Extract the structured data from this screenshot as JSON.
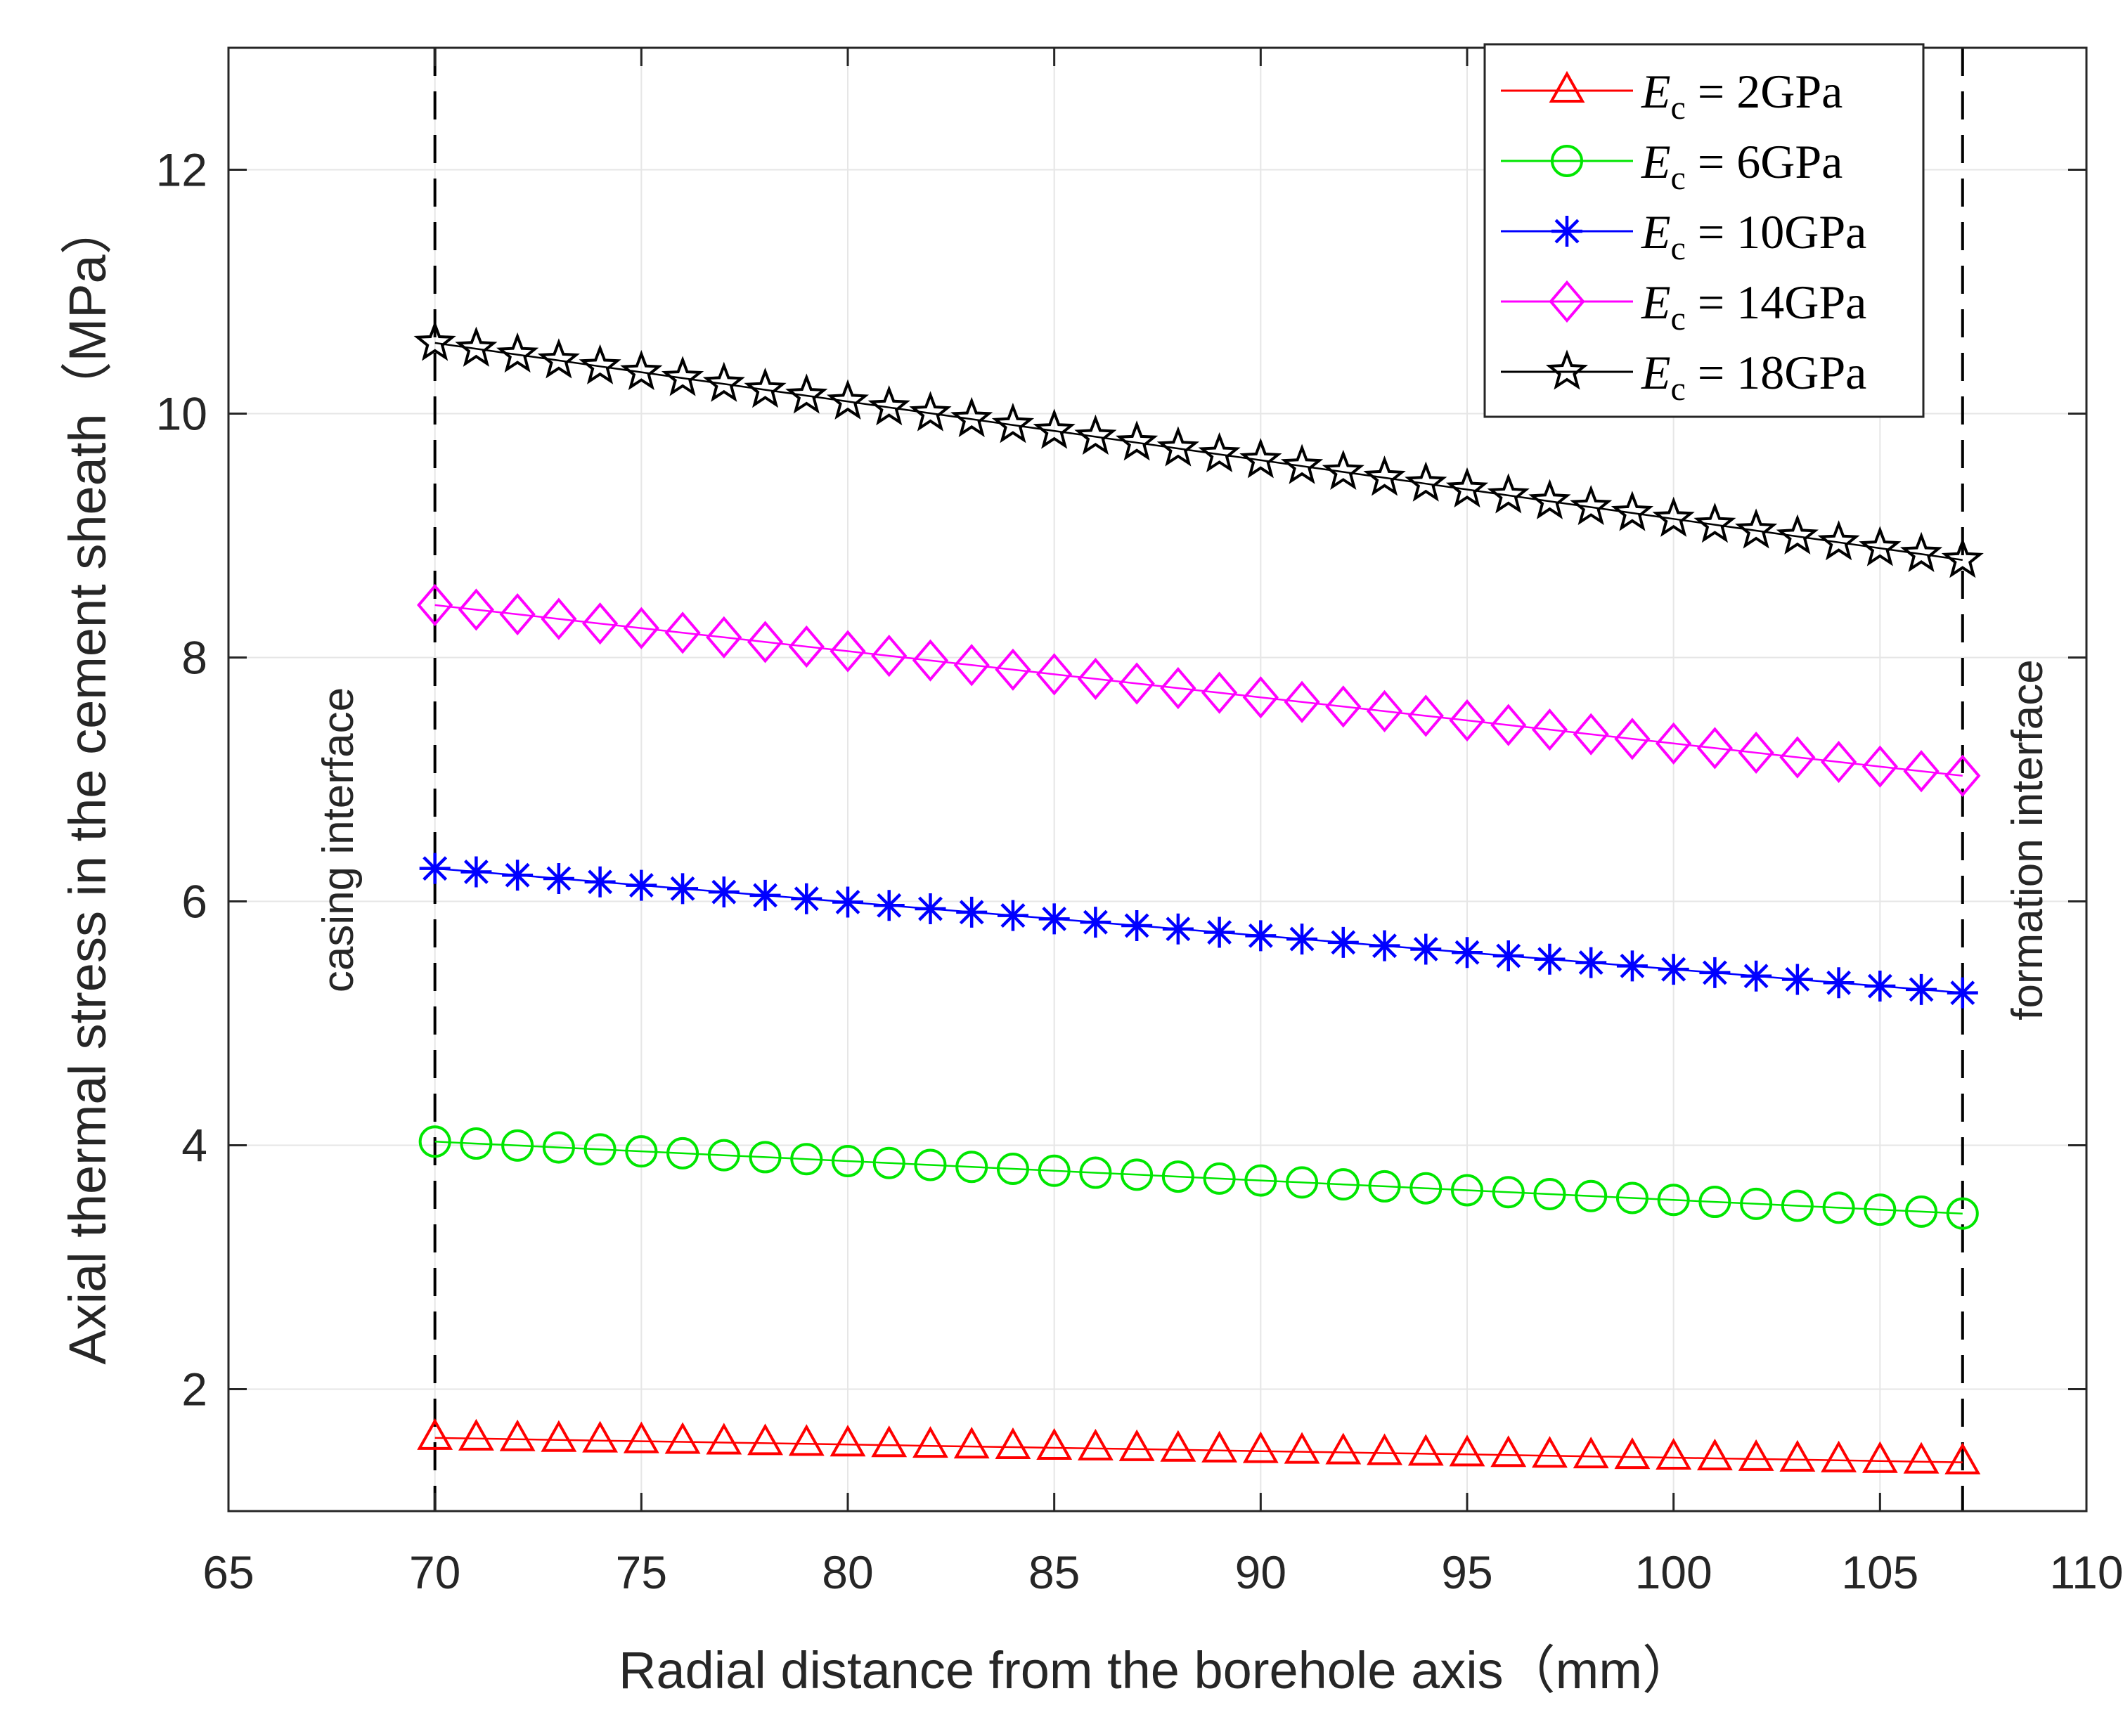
{
  "chart_data": {
    "type": "line",
    "title": "",
    "xlabel": "Radial distance from the borehole axis（mm）",
    "ylabel": "Axial thermal stress in the cement sheath（MPa）",
    "xlim": [
      65,
      110
    ],
    "ylim": [
      1.0,
      13.0
    ],
    "xticks": [
      65,
      70,
      75,
      80,
      85,
      90,
      95,
      100,
      105,
      110
    ],
    "yticks": [
      2,
      4,
      6,
      8,
      10,
      12
    ],
    "grid": true,
    "legend_position": "top-right",
    "x_start": 70,
    "x_end": 107,
    "num_points": 38,
    "series": [
      {
        "name": "2GPa",
        "marker": "triangle",
        "color": "#ff0000",
        "start": 1.6,
        "end": 1.4
      },
      {
        "name": "6GPa",
        "marker": "circle",
        "color": "#00e600",
        "start": 4.03,
        "end": 3.44
      },
      {
        "name": "10GPa",
        "marker": "asterisk",
        "color": "#0000ff",
        "start": 6.27,
        "end": 5.25
      },
      {
        "name": "14GPa",
        "marker": "diamond",
        "color": "#ff00ff",
        "start": 8.43,
        "end": 7.03
      },
      {
        "name": "18GPa",
        "marker": "pentagram",
        "color": "#000000",
        "start": 10.58,
        "end": 8.8
      }
    ],
    "legend_prefix": "E",
    "legend_subscript": "c",
    "legend_equals": "=",
    "annotations": [
      {
        "text": "casing interface",
        "x": 70
      },
      {
        "text": "formation interface",
        "x": 107
      }
    ]
  }
}
